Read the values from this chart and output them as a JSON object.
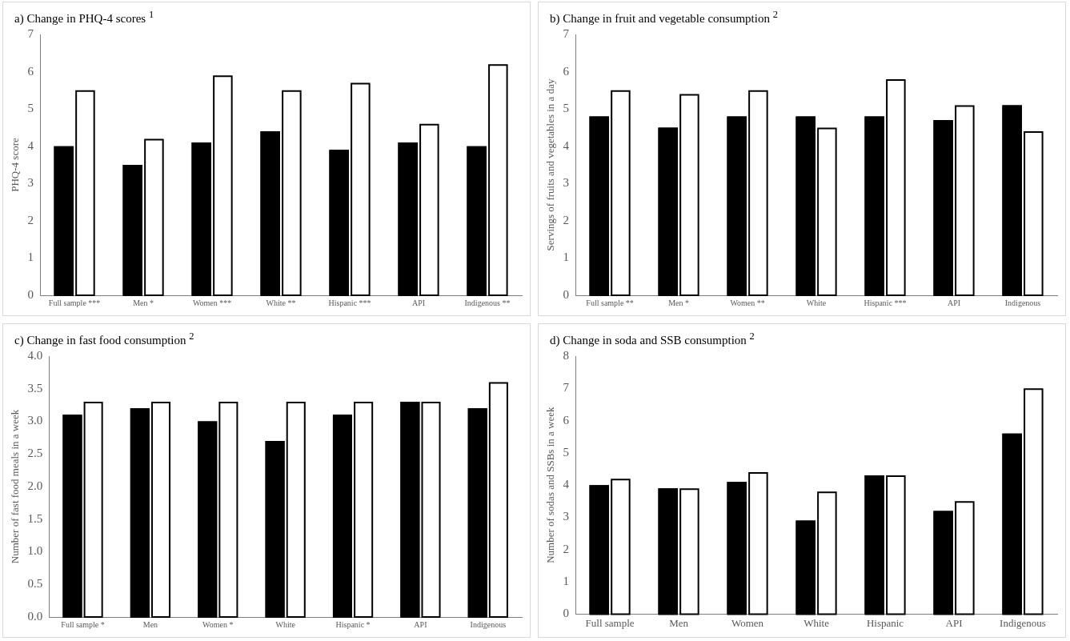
{
  "chart_data": [
    {
      "type": "bar",
      "title": "a) Change in PHQ-4 scores $^{1}$",
      "ylabel": "PHQ-4 score",
      "categories": [
        "Full sample ***",
        "Men *",
        "Women ***",
        "White **",
        "Hispanic ***",
        "API",
        "Indigenous **"
      ],
      "ylim": [
        0,
        7
      ],
      "yticks": [
        0,
        1,
        2,
        3,
        4,
        5,
        6,
        7
      ],
      "grid": false,
      "legend": false,
      "series": [
        {
          "color": "#000000",
          "values": [
            4.0,
            3.5,
            4.1,
            4.4,
            3.9,
            4.1,
            4.0
          ]
        },
        {
          "color": "#ffffff",
          "values": [
            5.5,
            4.2,
            5.9,
            5.5,
            5.7,
            4.6,
            6.2
          ]
        }
      ]
    },
    {
      "type": "bar",
      "title": "b) Change in fruit and vegetable consumption $^{2}$",
      "ylabel": "Servings of fruits and vegetables in a day",
      "categories": [
        "Full sample **",
        "Men *",
        "Women **",
        "White",
        "Hispanic ***",
        "API",
        "Indigenous"
      ],
      "ylim": [
        0,
        7
      ],
      "yticks": [
        0,
        1,
        2,
        3,
        4,
        5,
        6,
        7
      ],
      "grid": false,
      "legend": false,
      "series": [
        {
          "color": "#000000",
          "values": [
            4.8,
            4.5,
            4.8,
            4.8,
            4.8,
            4.7,
            5.1
          ]
        },
        {
          "color": "#ffffff",
          "values": [
            5.5,
            5.4,
            5.5,
            4.5,
            5.8,
            5.1,
            4.4
          ]
        }
      ]
    },
    {
      "type": "bar",
      "title": "c) Change in fast food consumption $^{2}$",
      "ylabel": "Number of fast food meals in a week",
      "categories": [
        "Full sample *",
        "Men",
        "Women *",
        "White",
        "Hispanic *",
        "API",
        "Indigenous"
      ],
      "ylim": [
        0,
        4
      ],
      "yticks": [
        {
          "value": 0,
          "label": "0.0"
        },
        {
          "value": 0.5,
          "label": "0.5"
        },
        {
          "value": 1,
          "label": "1.0"
        },
        {
          "value": 1.5,
          "label": "1.5"
        },
        {
          "value": 2,
          "label": "2.0"
        },
        {
          "value": 2.5,
          "label": "2.5"
        },
        {
          "value": 3,
          "label": "3.0"
        },
        {
          "value": 3.5,
          "label": "3.5"
        },
        {
          "value": 4,
          "label": "4.0"
        }
      ],
      "grid": false,
      "legend": false,
      "series": [
        {
          "color": "#000000",
          "values": [
            3.1,
            3.2,
            3.0,
            2.7,
            3.1,
            3.3,
            3.2
          ]
        },
        {
          "color": "#ffffff",
          "values": [
            3.3,
            3.3,
            3.3,
            3.3,
            3.3,
            3.3,
            3.6
          ]
        }
      ]
    },
    {
      "type": "bar",
      "title": "d) Change in soda and SSB consumption $^{2}$",
      "ylabel": "Number of sodas and SSBs in a week",
      "categories": [
        "Full sample",
        "Men",
        "Women",
        "White",
        "Hispanic",
        "API",
        "Indigenous"
      ],
      "ylim": [
        0,
        8
      ],
      "yticks": [
        0,
        1,
        2,
        3,
        4,
        5,
        6,
        7,
        8
      ],
      "grid": false,
      "legend": false,
      "series": [
        {
          "color": "#000000",
          "values": [
            4.0,
            3.9,
            4.1,
            2.9,
            4.3,
            3.2,
            5.6
          ]
        },
        {
          "color": "#ffffff",
          "values": [
            4.2,
            3.9,
            4.4,
            3.8,
            4.3,
            3.5,
            7.0
          ]
        }
      ]
    }
  ]
}
